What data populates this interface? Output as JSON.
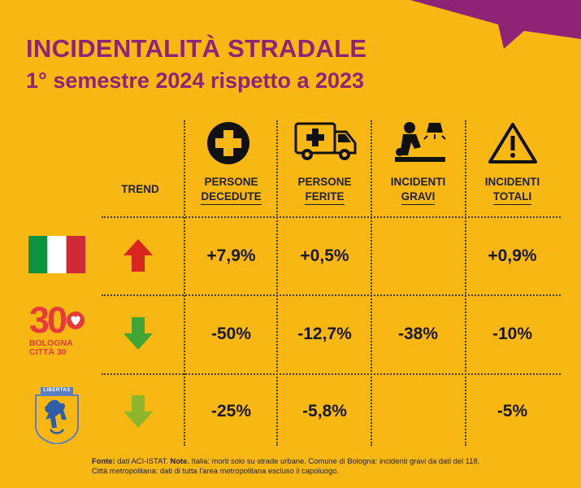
{
  "title": "INCIDENTALITÀ STRADALE",
  "subtitle": "1° semestre 2024 rispetto a 2023",
  "trend_header": "TREND",
  "columns": [
    {
      "line1": "PERSONE",
      "line2": "DECEDUTE",
      "icon": "cross-circle-icon"
    },
    {
      "line1": "PERSONE",
      "line2": "FERITE",
      "icon": "ambulance-icon"
    },
    {
      "line1": "INCIDENTI",
      "line2": "GRAVI",
      "icon": "cpr-rescue-icon"
    },
    {
      "line1": "INCIDENTI",
      "line2": "TOTALI",
      "icon": "warning-triangle-icon"
    }
  ],
  "rows": [
    {
      "entity": "Italia",
      "logo": "italy-flag-icon",
      "trend": "up",
      "trend_color": "#D8261F",
      "values": [
        "+7,9%",
        "+0,5%",
        "",
        "+0,9%"
      ]
    },
    {
      "entity": "Bologna Città 30",
      "logo": "bologna-citta30-logo",
      "logo_number": "30",
      "logo_line1": "BOLOGNA",
      "logo_line2": "CITTÀ 30",
      "trend": "down",
      "trend_color": "#3FA535",
      "values": [
        "-50%",
        "-12,7%",
        "-38%",
        "-10%"
      ]
    },
    {
      "entity": "Città metropolitana",
      "logo": "metropolitan-city-crest-icon",
      "crest_text": "LIBERTAS",
      "trend": "down",
      "trend_color": "#8DB62A",
      "values": [
        "-25%",
        "-5,8%",
        "",
        "-5%"
      ]
    }
  ],
  "footnote": {
    "source_label": "Fonte:",
    "source_text": "dati ACI-ISTAT.",
    "note_label": "Note.",
    "note_text": "Italia: morti solo su strade urbane. Comune di Bologna: incidenti gravi da dati del 118.",
    "line2": "Città metropolitana: dati di tutta l'area metropolitana escluso il capoluogo."
  },
  "colors": {
    "background": "#F8B712",
    "accent": "#8F2476",
    "logo_red": "#E83A3A"
  }
}
